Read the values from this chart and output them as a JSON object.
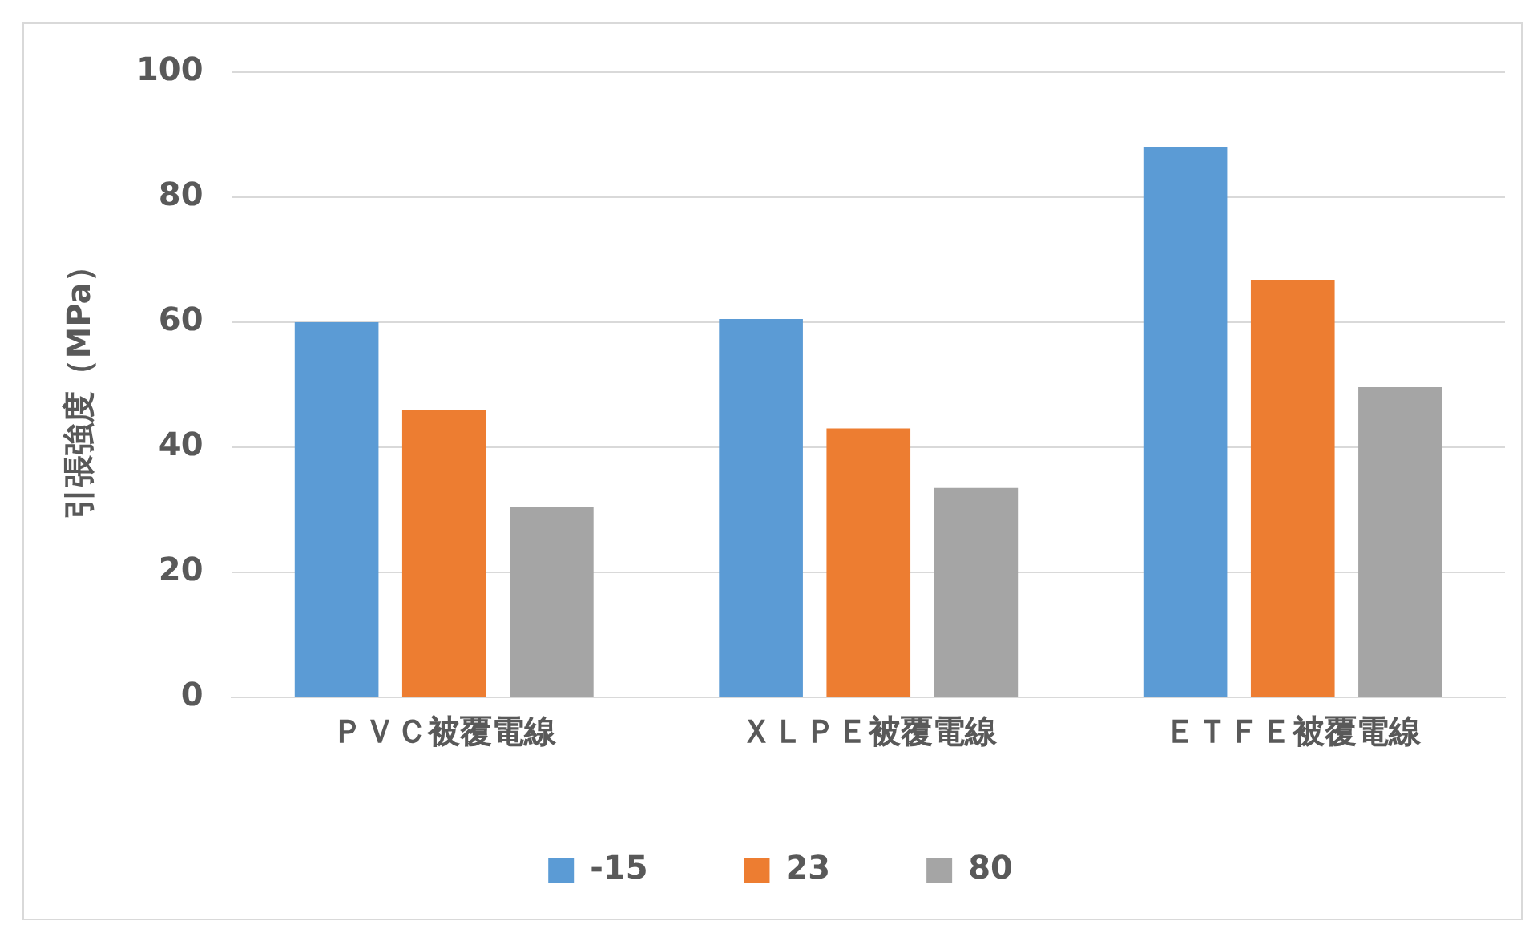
{
  "chart_data": {
    "type": "bar",
    "ylabel": "引張強度（MPa）",
    "categories": [
      "ＰＶＣ被覆電線",
      "ＸＬＰＥ被覆電線",
      "ＥＴＦＥ被覆電線"
    ],
    "series": [
      {
        "name": "-15",
        "color": "#5b9bd5",
        "values": [
          60,
          60.5,
          88
        ]
      },
      {
        "name": "23",
        "color": "#ed7d31",
        "values": [
          46,
          43,
          66.8
        ]
      },
      {
        "name": "80",
        "color": "#a5a5a5",
        "values": [
          30.4,
          33.5,
          49.6
        ]
      }
    ],
    "ylim": [
      0,
      100
    ],
    "yticks": [
      0,
      20,
      40,
      60,
      80,
      100
    ],
    "grid": "y",
    "legend": "bottom"
  }
}
